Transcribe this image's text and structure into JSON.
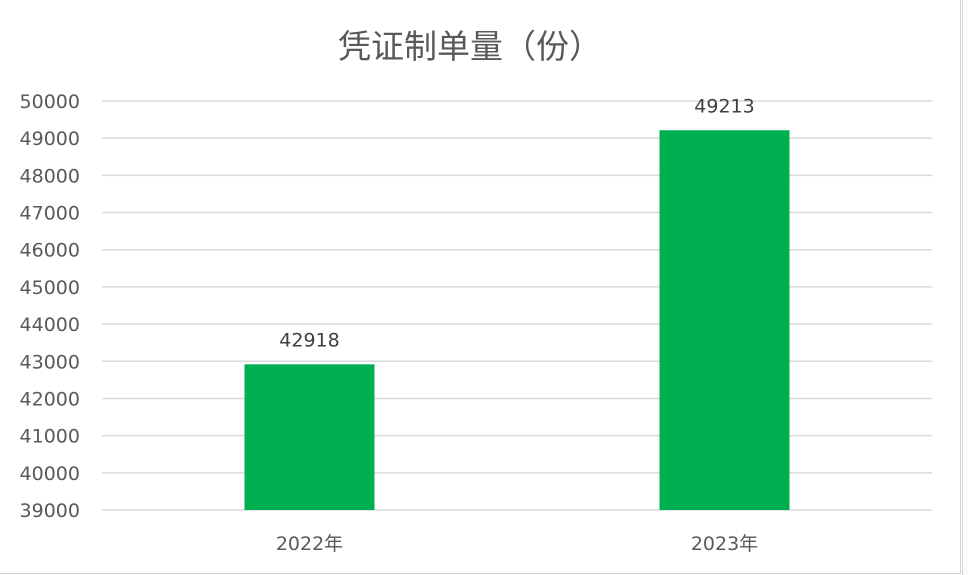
{
  "chart_data": {
    "type": "bar",
    "title": "凭证制单量（份）",
    "categories": [
      "2022年",
      "2023年"
    ],
    "values": [
      42918,
      49213
    ],
    "data_labels": [
      "42918",
      "49213"
    ],
    "xlabel": "",
    "ylabel": "",
    "ylim": [
      39000,
      50000
    ],
    "yticks": [
      "39000",
      "40000",
      "41000",
      "42000",
      "43000",
      "44000",
      "45000",
      "46000",
      "47000",
      "48000",
      "49000",
      "50000"
    ],
    "grid": true,
    "legend": "none",
    "bar_color": "#00B050",
    "grid_color": "#D9D9D9"
  }
}
